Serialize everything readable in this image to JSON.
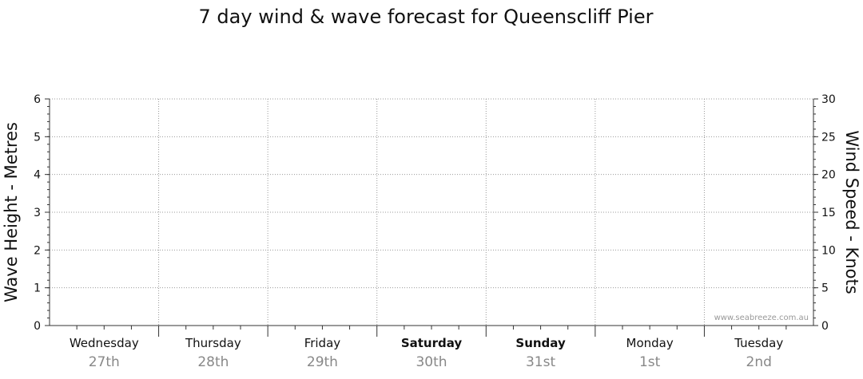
{
  "chart_data": {
    "type": "line",
    "title": "7 day wind & wave forecast for Queenscliff Pier",
    "ylabel_left": "Wave Height - Metres",
    "ylabel_right": "Wind Speed - Knots",
    "ylim_left": [
      0,
      6
    ],
    "ylim_right": [
      0,
      30
    ],
    "left_ticks": [
      "0",
      "1",
      "2",
      "3",
      "4",
      "5",
      "6"
    ],
    "right_ticks": [
      "0",
      "5",
      "10",
      "15",
      "20",
      "25",
      "30"
    ],
    "grid": true,
    "days": [
      {
        "name": "Wednesday",
        "date": "27th",
        "bold": false
      },
      {
        "name": "Thursday",
        "date": "28th",
        "bold": false
      },
      {
        "name": "Friday",
        "date": "29th",
        "bold": false
      },
      {
        "name": "Saturday",
        "date": "30th",
        "bold": true
      },
      {
        "name": "Sunday",
        "date": "31st",
        "bold": true
      },
      {
        "name": "Monday",
        "date": "1st",
        "bold": false
      },
      {
        "name": "Tuesday",
        "date": "2nd",
        "bold": false
      }
    ],
    "series": [],
    "watermark": "www.seabreeze.com.au"
  }
}
